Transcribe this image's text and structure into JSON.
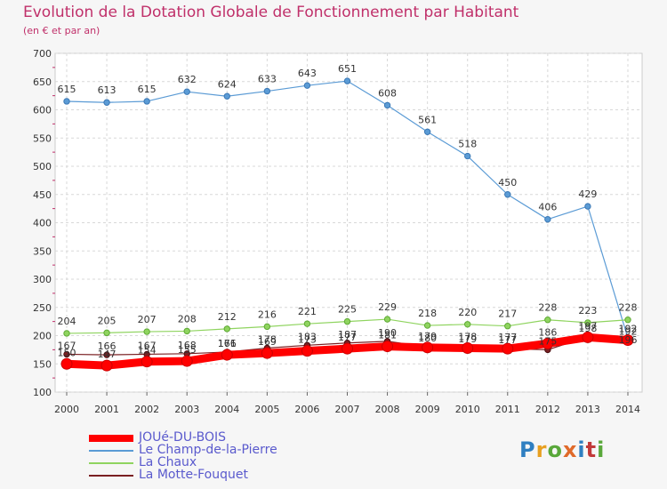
{
  "header": {
    "title": "Evolution de la Dotation Globale de Fonctionnement par Habitant",
    "subtitle": "(en € et par an)"
  },
  "logo": {
    "text": "Proxiti"
  },
  "chart_data": {
    "type": "line",
    "title": "Evolution de la Dotation Globale de Fonctionnement par Habitant",
    "subtitle": "(en € et par an)",
    "xlabel": "",
    "ylabel": "",
    "x": [
      "2000",
      "2001",
      "2002",
      "2003",
      "2004",
      "2005",
      "2006",
      "2007",
      "2008",
      "2009",
      "2010",
      "2011",
      "2012",
      "2013",
      "2014"
    ],
    "ylim": [
      100,
      700
    ],
    "yticks": [
      100,
      150,
      200,
      250,
      300,
      350,
      400,
      450,
      500,
      550,
      600,
      650,
      700
    ],
    "grid": true,
    "legend_position": "bottom",
    "series": [
      {
        "name": "JOUé-DU-BOIS",
        "color": "#ff0000",
        "values": [
          150,
          147,
          154,
          155,
          166,
          169,
          173,
          177,
          181,
          179,
          178,
          177,
          186,
          197,
          192
        ],
        "labels": [
          "150",
          "147",
          "154",
          "155",
          "166",
          "169",
          "173",
          "177",
          "181",
          "179",
          "178",
          "177",
          "186",
          "197",
          "192"
        ]
      },
      {
        "name": "Le Champ-de-la-Pierre",
        "color": "#5b9bd5",
        "values": [
          615,
          613,
          615,
          632,
          624,
          633,
          643,
          651,
          608,
          561,
          518,
          450,
          406,
          429,
          196
        ],
        "labels": [
          "615",
          "613",
          "615",
          "632",
          "624",
          "633",
          "643",
          "651",
          "608",
          "561",
          "518",
          "450",
          "406",
          "429",
          "196"
        ]
      },
      {
        "name": "La Chaux",
        "color": "#8fd45f",
        "values": [
          204,
          205,
          207,
          208,
          212,
          216,
          221,
          225,
          229,
          218,
          220,
          217,
          228,
          223,
          228
        ],
        "labels": [
          "204",
          "205",
          "207",
          "208",
          "212",
          "216",
          "221",
          "225",
          "229",
          "218",
          "220",
          "217",
          "228",
          "223",
          "228"
        ]
      },
      {
        "name": "La Motte-Fouquet",
        "color": "#7a1f22",
        "values": [
          167,
          166,
          167,
          168,
          171,
          178,
          183,
          187,
          190,
          180,
          179,
          177,
          175,
          198,
          192
        ],
        "labels": [
          "167",
          "166",
          "167",
          "168",
          "171",
          "178",
          "183",
          "187",
          "190",
          "180",
          "179",
          "177",
          "175",
          "198",
          "192"
        ]
      }
    ]
  }
}
